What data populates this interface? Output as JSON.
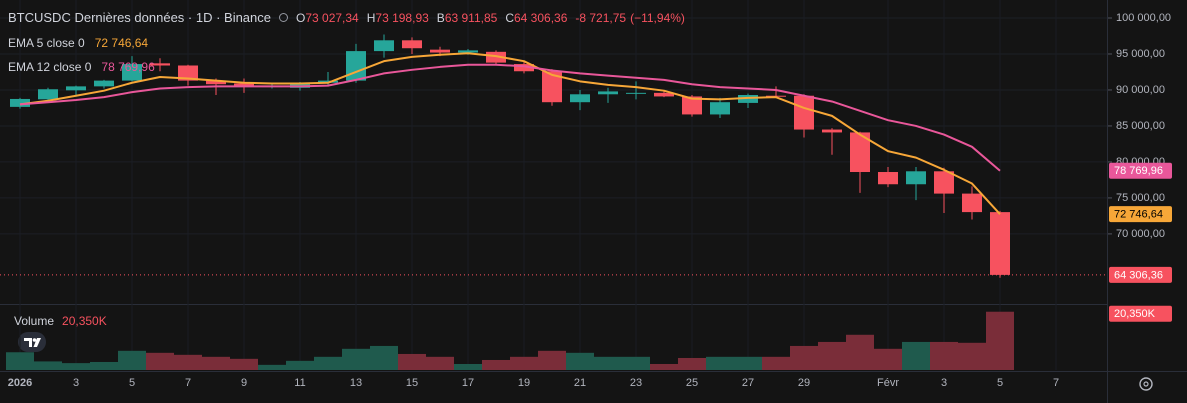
{
  "chart_data": {
    "type": "candlestick",
    "title": "BTCUSDC Dernières données · 1D · Binance",
    "categories": [
      "2026",
      null,
      "3",
      null,
      "5",
      null,
      "7",
      null,
      "9",
      null,
      "11",
      null,
      "13",
      null,
      "15",
      null,
      "17",
      null,
      "19",
      null,
      "21",
      null,
      "23",
      null,
      "25",
      null,
      "27",
      null,
      "29",
      null,
      null,
      "Févr",
      null,
      "3",
      null,
      "5",
      null,
      "7"
    ],
    "ohlc": {
      "up_color": "#26a69a",
      "down_color": "#f7525f",
      "open": [
        87650,
        88700,
        89950,
        90500,
        91300,
        93700,
        93400,
        91300,
        90900,
        90400,
        90300,
        91000,
        91300,
        95400,
        96900,
        95600,
        95200,
        95300,
        93600,
        92600,
        88300,
        89400,
        89500,
        89600,
        89100,
        86600,
        88200,
        89200,
        89200,
        84500,
        84100,
        78600,
        76900,
        78700,
        75600,
        73027.34,
        null,
        null
      ],
      "high": [
        88900,
        90300,
        90600,
        91400,
        94700,
        94400,
        93500,
        91600,
        91600,
        90800,
        91100,
        92500,
        96400,
        97700,
        97300,
        96000,
        95700,
        95500,
        93900,
        92900,
        90000,
        90300,
        91200,
        89900,
        89300,
        88900,
        89500,
        90500,
        89400,
        84700,
        84200,
        79300,
        79300,
        79200,
        76600,
        73198.93,
        null,
        null
      ],
      "low": [
        87400,
        88200,
        89300,
        90200,
        91200,
        92600,
        90600,
        89300,
        89600,
        90200,
        89900,
        90600,
        91000,
        94500,
        95000,
        94700,
        94900,
        93600,
        92300,
        87800,
        87200,
        88200,
        88700,
        89000,
        86300,
        86100,
        87500,
        88900,
        83400,
        81000,
        75700,
        76500,
        74700,
        72900,
        72000,
        63911.85,
        null,
        null
      ],
      "close": [
        88750,
        90100,
        90500,
        91300,
        93600,
        93400,
        91300,
        90800,
        90500,
        90600,
        91000,
        91300,
        95400,
        96900,
        95800,
        95200,
        95500,
        93800,
        92600,
        88300,
        89400,
        89800,
        89600,
        89100,
        86600,
        88300,
        89300,
        89100,
        84500,
        84100,
        78600,
        76900,
        78700,
        75600,
        73030,
        64306.36,
        null,
        null
      ],
      "last_label": "64 306,36"
    },
    "ohlc_legend": [
      {
        "label": "O",
        "value": "73 027,34"
      },
      {
        "label": "H",
        "value": "73 198,93"
      },
      {
        "label": "B",
        "value": "63 911,85"
      },
      {
        "label": "C",
        "value": "64 306,36"
      }
    ],
    "change": "-8 721,75",
    "change_pct": "(−11,94%)",
    "series": [
      {
        "name": "EMA 5 close 0",
        "color": "#f7a738",
        "last_label": "72 746,64",
        "values": [
          88000,
          88500,
          89200,
          89900,
          91000,
          91800,
          91600,
          91300,
          91000,
          90900,
          90900,
          91000,
          92500,
          94000,
          94600,
          94900,
          95100,
          94700,
          94000,
          92100,
          91200,
          90700,
          90400,
          89900,
          88800,
          88700,
          88900,
          89000,
          87500,
          86400,
          83800,
          81500,
          80600,
          78900,
          77000,
          72746.64,
          null,
          null
        ]
      },
      {
        "name": "EMA 12 close 0",
        "color": "#e9579a",
        "last_label": "78 769,96",
        "values": [
          88000,
          88300,
          88600,
          89000,
          89700,
          90200,
          90400,
          90500,
          90500,
          90500,
          90500,
          90600,
          91400,
          92300,
          92800,
          93200,
          93500,
          93500,
          93300,
          92700,
          92300,
          92000,
          91700,
          91400,
          90800,
          90400,
          90200,
          90000,
          89200,
          88400,
          87100,
          85800,
          85000,
          83800,
          82100,
          78769.96,
          null,
          null
        ]
      }
    ],
    "volume": {
      "name": "Volume",
      "last_label": "20,350K",
      "up_color": "#1f5a4d",
      "down_color": "#7a2d39",
      "ylim": [
        0,
        22
      ],
      "values": [
        6.2,
        3.0,
        2.4,
        2.8,
        6.7,
        6.0,
        5.3,
        4.6,
        3.9,
        1.8,
        3.2,
        4.6,
        7.4,
        8.4,
        5.6,
        4.6,
        2.1,
        3.5,
        4.6,
        6.7,
        6.0,
        4.6,
        4.6,
        2.1,
        4.2,
        4.6,
        4.6,
        4.6,
        8.4,
        9.8,
        12.3,
        7.4,
        9.8,
        9.8,
        9.5,
        20.35,
        null,
        null
      ]
    },
    "ylim": [
      60400,
      102500
    ],
    "yticks": [
      {
        "value": 100000,
        "label": "100 000,00"
      },
      {
        "value": 95000,
        "label": "95 000,00"
      },
      {
        "value": 90000,
        "label": "90 000,00"
      },
      {
        "value": 85000,
        "label": "85 000,00"
      },
      {
        "value": 80000,
        "label": "80 000,00"
      },
      {
        "value": 75000,
        "label": "75 000,00"
      },
      {
        "value": 70000,
        "label": "70 000,00"
      }
    ],
    "grid": true
  }
}
